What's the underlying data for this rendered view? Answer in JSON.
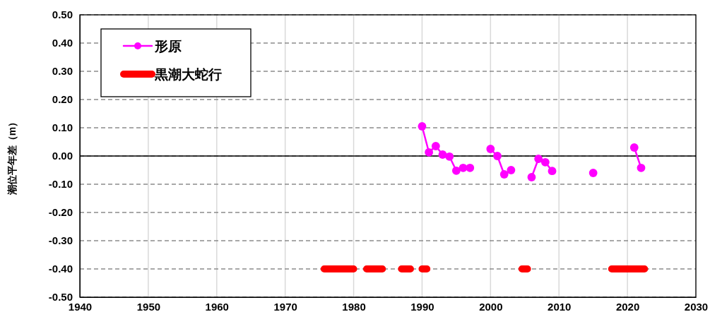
{
  "chart_data": {
    "type": "line",
    "ylabel": "潮位平年差（m）",
    "xlim": [
      1940,
      2030
    ],
    "xticks": [
      1940,
      1950,
      1960,
      1970,
      1980,
      1990,
      2000,
      2010,
      2020,
      2030
    ],
    "ylim": [
      -0.5,
      0.5
    ],
    "yticks": [
      {
        "value": -0.5,
        "label": "-0.50"
      },
      {
        "value": -0.4,
        "label": "-0.40"
      },
      {
        "value": -0.3,
        "label": "-0.30"
      },
      {
        "value": -0.2,
        "label": "-0.20"
      },
      {
        "value": -0.1,
        "label": "-0.10"
      },
      {
        "value": 0,
        "label": "0.00"
      },
      {
        "value": 0.1,
        "label": "0.10"
      },
      {
        "value": 0.2,
        "label": "0.20"
      },
      {
        "value": 0.3,
        "label": "0.30"
      },
      {
        "value": 0.4,
        "label": "0.40"
      },
      {
        "value": 0.5,
        "label": "0.50"
      }
    ],
    "grid": true,
    "legend": "top left",
    "ref_lines": [
      {
        "axis": "y",
        "value": 0,
        "color": "#000000"
      }
    ],
    "series": [
      {
        "name": "形原",
        "color": "#ff00ff",
        "marker": "circle",
        "x": [
          1990,
          1991,
          1992,
          1993,
          1994,
          1995,
          1996,
          1997,
          1998,
          2000,
          2001,
          2002,
          2003,
          2004,
          2006,
          2007,
          2008,
          2009,
          2010,
          2015,
          2016,
          2021,
          2022
        ],
        "values": [
          0.105,
          0.013,
          0.035,
          0.005,
          -0.002,
          -0.052,
          -0.042,
          -0.042,
          null,
          0.025,
          0.0,
          -0.065,
          -0.05,
          null,
          -0.075,
          -0.01,
          -0.022,
          -0.053,
          null,
          -0.06,
          null,
          0.03,
          -0.042
        ]
      },
      {
        "name": "黒潮大蛇行",
        "color": "#ff0000",
        "marker": "none",
        "x": [
          1975.7,
          1980,
          1981,
          1981.9,
          1984.2,
          1985,
          1987,
          1988.3,
          1989,
          1990,
          1990.7,
          1995,
          2004.6,
          2005.4,
          2010,
          2017.7,
          2022.5
        ],
        "values": [
          -0.4,
          -0.4,
          null,
          -0.4,
          -0.4,
          null,
          -0.4,
          -0.4,
          null,
          -0.4,
          -0.4,
          null,
          -0.4,
          -0.4,
          null,
          -0.4,
          -0.4
        ]
      }
    ]
  }
}
